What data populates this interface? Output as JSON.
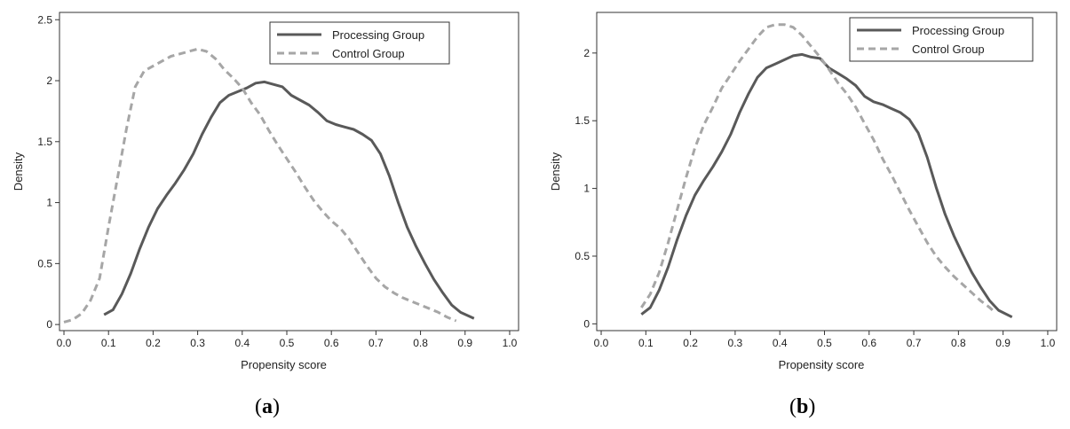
{
  "chart_data": [
    {
      "type": "line",
      "panel_label": "a",
      "xlabel": "Propensity score",
      "ylabel": "Density",
      "xlim": [
        -0.01,
        1.02
      ],
      "ylim": [
        -0.05,
        2.56
      ],
      "xticks": [
        0.0,
        0.1,
        0.2,
        0.3,
        0.4,
        0.5,
        0.6,
        0.7,
        0.8,
        0.9,
        1.0
      ],
      "xtick_labels": [
        "0.0",
        "0.1",
        "0.2",
        "0.3",
        "0.4",
        "0.5",
        "0.6",
        "0.7",
        "0.8",
        "0.9",
        "1.0"
      ],
      "yticks": [
        0,
        0.5,
        1,
        1.5,
        2,
        2.5
      ],
      "ytick_labels": [
        "0",
        "0.5",
        "1",
        "1.5",
        "2",
        "2.5"
      ],
      "grid": false,
      "legend_position": "top-right",
      "series": [
        {
          "name": "Processing Group",
          "style": "solid",
          "color": "#595959",
          "points": [
            [
              0.09,
              0.08
            ],
            [
              0.11,
              0.12
            ],
            [
              0.13,
              0.25
            ],
            [
              0.15,
              0.42
            ],
            [
              0.17,
              0.62
            ],
            [
              0.19,
              0.8
            ],
            [
              0.21,
              0.95
            ],
            [
              0.23,
              1.06
            ],
            [
              0.25,
              1.16
            ],
            [
              0.27,
              1.27
            ],
            [
              0.29,
              1.4
            ],
            [
              0.31,
              1.56
            ],
            [
              0.33,
              1.7
            ],
            [
              0.35,
              1.82
            ],
            [
              0.37,
              1.88
            ],
            [
              0.39,
              1.91
            ],
            [
              0.41,
              1.94
            ],
            [
              0.43,
              1.98
            ],
            [
              0.45,
              1.99
            ],
            [
              0.47,
              1.97
            ],
            [
              0.49,
              1.95
            ],
            [
              0.51,
              1.88
            ],
            [
              0.53,
              1.84
            ],
            [
              0.55,
              1.8
            ],
            [
              0.57,
              1.74
            ],
            [
              0.59,
              1.67
            ],
            [
              0.61,
              1.64
            ],
            [
              0.63,
              1.62
            ],
            [
              0.65,
              1.6
            ],
            [
              0.67,
              1.56
            ],
            [
              0.69,
              1.51
            ],
            [
              0.71,
              1.4
            ],
            [
              0.73,
              1.22
            ],
            [
              0.75,
              1.0
            ],
            [
              0.77,
              0.8
            ],
            [
              0.79,
              0.64
            ],
            [
              0.81,
              0.5
            ],
            [
              0.83,
              0.37
            ],
            [
              0.85,
              0.26
            ],
            [
              0.87,
              0.16
            ],
            [
              0.89,
              0.1
            ],
            [
              0.92,
              0.05
            ]
          ]
        },
        {
          "name": "Control Group",
          "style": "dashed",
          "color": "#a6a6a6",
          "points": [
            [
              0.0,
              0.02
            ],
            [
              0.02,
              0.04
            ],
            [
              0.04,
              0.09
            ],
            [
              0.06,
              0.2
            ],
            [
              0.08,
              0.38
            ],
            [
              0.1,
              0.8
            ],
            [
              0.12,
              1.2
            ],
            [
              0.14,
              1.6
            ],
            [
              0.16,
              1.95
            ],
            [
              0.18,
              2.08
            ],
            [
              0.2,
              2.12
            ],
            [
              0.22,
              2.16
            ],
            [
              0.24,
              2.2
            ],
            [
              0.26,
              2.22
            ],
            [
              0.28,
              2.24
            ],
            [
              0.3,
              2.26
            ],
            [
              0.32,
              2.24
            ],
            [
              0.34,
              2.18
            ],
            [
              0.36,
              2.09
            ],
            [
              0.38,
              2.02
            ],
            [
              0.4,
              1.94
            ],
            [
              0.42,
              1.82
            ],
            [
              0.44,
              1.72
            ],
            [
              0.46,
              1.59
            ],
            [
              0.48,
              1.47
            ],
            [
              0.5,
              1.36
            ],
            [
              0.52,
              1.25
            ],
            [
              0.54,
              1.13
            ],
            [
              0.56,
              1.02
            ],
            [
              0.58,
              0.93
            ],
            [
              0.6,
              0.85
            ],
            [
              0.62,
              0.79
            ],
            [
              0.64,
              0.7
            ],
            [
              0.66,
              0.59
            ],
            [
              0.68,
              0.48
            ],
            [
              0.7,
              0.38
            ],
            [
              0.72,
              0.31
            ],
            [
              0.74,
              0.26
            ],
            [
              0.76,
              0.22
            ],
            [
              0.78,
              0.19
            ],
            [
              0.8,
              0.16
            ],
            [
              0.82,
              0.13
            ],
            [
              0.84,
              0.1
            ],
            [
              0.86,
              0.06
            ],
            [
              0.88,
              0.03
            ]
          ]
        }
      ]
    },
    {
      "type": "line",
      "panel_label": "b",
      "xlabel": "Propensity score",
      "ylabel": "Density",
      "xlim": [
        -0.01,
        1.02
      ],
      "ylim": [
        -0.05,
        2.3
      ],
      "xticks": [
        0.0,
        0.1,
        0.2,
        0.3,
        0.4,
        0.5,
        0.6,
        0.7,
        0.8,
        0.9,
        1.0
      ],
      "xtick_labels": [
        "0.0",
        "0.1",
        "0.2",
        "0.3",
        "0.4",
        "0.5",
        "0.6",
        "0.7",
        "0.8",
        "0.9",
        "1.0"
      ],
      "yticks": [
        0,
        0.5,
        1,
        1.5,
        2
      ],
      "ytick_labels": [
        "0",
        "0.5",
        "1",
        "1.5",
        "2"
      ],
      "grid": false,
      "legend_position": "top-right",
      "series": [
        {
          "name": "Processing Group",
          "style": "solid",
          "color": "#595959",
          "points": [
            [
              0.09,
              0.07
            ],
            [
              0.11,
              0.12
            ],
            [
              0.13,
              0.25
            ],
            [
              0.15,
              0.42
            ],
            [
              0.17,
              0.62
            ],
            [
              0.19,
              0.8
            ],
            [
              0.21,
              0.95
            ],
            [
              0.23,
              1.06
            ],
            [
              0.25,
              1.16
            ],
            [
              0.27,
              1.27
            ],
            [
              0.29,
              1.4
            ],
            [
              0.31,
              1.56
            ],
            [
              0.33,
              1.7
            ],
            [
              0.35,
              1.82
            ],
            [
              0.37,
              1.89
            ],
            [
              0.39,
              1.92
            ],
            [
              0.41,
              1.95
            ],
            [
              0.43,
              1.98
            ],
            [
              0.45,
              1.99
            ],
            [
              0.47,
              1.97
            ],
            [
              0.49,
              1.96
            ],
            [
              0.51,
              1.89
            ],
            [
              0.53,
              1.85
            ],
            [
              0.55,
              1.81
            ],
            [
              0.57,
              1.76
            ],
            [
              0.59,
              1.68
            ],
            [
              0.61,
              1.64
            ],
            [
              0.63,
              1.62
            ],
            [
              0.65,
              1.59
            ],
            [
              0.67,
              1.56
            ],
            [
              0.69,
              1.51
            ],
            [
              0.71,
              1.41
            ],
            [
              0.73,
              1.23
            ],
            [
              0.75,
              1.01
            ],
            [
              0.77,
              0.81
            ],
            [
              0.79,
              0.65
            ],
            [
              0.81,
              0.51
            ],
            [
              0.83,
              0.38
            ],
            [
              0.85,
              0.27
            ],
            [
              0.87,
              0.17
            ],
            [
              0.89,
              0.1
            ],
            [
              0.92,
              0.05
            ]
          ]
        },
        {
          "name": "Control Group",
          "style": "dashed",
          "color": "#a6a6a6",
          "points": [
            [
              0.09,
              0.12
            ],
            [
              0.11,
              0.22
            ],
            [
              0.13,
              0.38
            ],
            [
              0.15,
              0.6
            ],
            [
              0.17,
              0.84
            ],
            [
              0.19,
              1.08
            ],
            [
              0.21,
              1.3
            ],
            [
              0.23,
              1.47
            ],
            [
              0.25,
              1.6
            ],
            [
              0.27,
              1.74
            ],
            [
              0.29,
              1.84
            ],
            [
              0.31,
              1.94
            ],
            [
              0.33,
              2.03
            ],
            [
              0.35,
              2.12
            ],
            [
              0.37,
              2.19
            ],
            [
              0.39,
              2.21
            ],
            [
              0.41,
              2.21
            ],
            [
              0.43,
              2.19
            ],
            [
              0.45,
              2.13
            ],
            [
              0.47,
              2.05
            ],
            [
              0.49,
              1.97
            ],
            [
              0.51,
              1.88
            ],
            [
              0.53,
              1.78
            ],
            [
              0.55,
              1.7
            ],
            [
              0.57,
              1.6
            ],
            [
              0.59,
              1.48
            ],
            [
              0.61,
              1.36
            ],
            [
              0.63,
              1.22
            ],
            [
              0.65,
              1.1
            ],
            [
              0.67,
              0.97
            ],
            [
              0.69,
              0.84
            ],
            [
              0.71,
              0.72
            ],
            [
              0.73,
              0.6
            ],
            [
              0.75,
              0.5
            ],
            [
              0.77,
              0.42
            ],
            [
              0.79,
              0.35
            ],
            [
              0.81,
              0.29
            ],
            [
              0.83,
              0.23
            ],
            [
              0.85,
              0.17
            ],
            [
              0.87,
              0.12
            ],
            [
              0.88,
              0.09
            ]
          ]
        }
      ]
    }
  ]
}
